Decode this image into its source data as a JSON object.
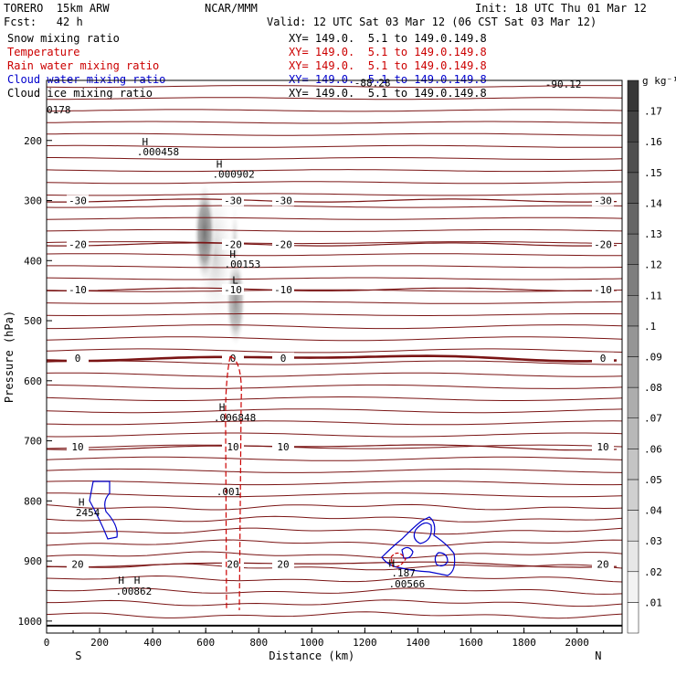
{
  "header": {
    "model": "TORERO  15km ARW",
    "org": "NCAR/MMM",
    "init": "Init: 18 UTC Thu 01 Mar 12",
    "fcst": "Fcst:   42 h",
    "valid": "Valid: 12 UTC Sat 03 Mar 12 (06 CST Sat 03 Mar 12)"
  },
  "legend": [
    {
      "label": "Snow mixing ratio",
      "xy": "XY= 149.0.  5.1 to 149.0.149.8",
      "color": "#000000"
    },
    {
      "label": "Temperature",
      "xy": "XY= 149.0.  5.1 to 149.0.149.8",
      "color": "#cc0000"
    },
    {
      "label": "Rain water mixing ratio",
      "xy": "XY= 149.0.  5.1 to 149.0.149.8",
      "color": "#cc0000"
    },
    {
      "label": "Cloud water mixing ratio",
      "xy": "XY= 149.0.  5.1 to 149.0.149.8",
      "color": "#0000cc"
    },
    {
      "label": "Cloud ice mixing ratio",
      "xy": "XY= 149.0.  5.1 to 149.0.149.8",
      "color": "#000000"
    }
  ],
  "chart_data": {
    "type": "cross-section contour",
    "xlabel": "Distance (km)",
    "ylabel": "Pressure (hPa)",
    "xlim": [
      0,
      2170
    ],
    "ylim": [
      1000,
      100
    ],
    "x_ticks": [
      "0",
      "200",
      "400",
      "600",
      "800",
      "1000",
      "1200",
      "1400",
      "1600",
      "1800",
      "2000"
    ],
    "x_tick_values": [
      0,
      200,
      400,
      600,
      800,
      1000,
      1200,
      1400,
      1600,
      1800,
      2000
    ],
    "y_ticks": [
      "200",
      "300",
      "400",
      "500",
      "600",
      "700",
      "800",
      "900",
      "1000"
    ],
    "y_tick_values": [
      200,
      300,
      400,
      500,
      600,
      700,
      800,
      900,
      1000
    ],
    "left_end_label": "S",
    "right_end_label": "N",
    "colorbar": {
      "unit": "g kg⁻¹",
      "levels": [
        ".01",
        ".02",
        ".03",
        ".04",
        ".05",
        ".06",
        ".07",
        ".08",
        ".09",
        ".1",
        ".11",
        ".12",
        ".13",
        ".14",
        ".15",
        ".16",
        ".17"
      ],
      "level_values": [
        0.01,
        0.02,
        0.03,
        0.04,
        0.05,
        0.06,
        0.07,
        0.08,
        0.09,
        0.1,
        0.11,
        0.12,
        0.13,
        0.14,
        0.15,
        0.16,
        0.17
      ]
    },
    "temperature_isotherms": [
      {
        "label": "-30",
        "pressure": 300
      },
      {
        "label": "-20",
        "pressure": 373
      },
      {
        "label": "-10",
        "pressure": 448
      },
      {
        "label": "0",
        "pressure": 562
      },
      {
        "label": "10",
        "pressure": 710
      },
      {
        "label": "20",
        "pressure": 905
      }
    ],
    "annotations": [
      {
        "text": "0178",
        "x": 0,
        "pressure": 155,
        "color": "#000000"
      },
      {
        "text": "H",
        "x": 360,
        "pressure": 208,
        "color": "#000000"
      },
      {
        "text": ".000458",
        "x": 340,
        "pressure": 225,
        "color": "#000000"
      },
      {
        "text": "H",
        "x": 640,
        "pressure": 245,
        "color": "#000000"
      },
      {
        "text": ".000902",
        "x": 625,
        "pressure": 262,
        "color": "#000000"
      },
      {
        "text": "H",
        "x": 690,
        "pressure": 395,
        "color": "#000000"
      },
      {
        "text": ".00153",
        "x": 670,
        "pressure": 412,
        "color": "#000000"
      },
      {
        "text": "L",
        "x": 700,
        "pressure": 438,
        "color": "#000000"
      },
      {
        "text": "H",
        "x": 650,
        "pressure": 650,
        "color": "#cc0000"
      },
      {
        "text": ".006848",
        "x": 630,
        "pressure": 667,
        "color": "#cc0000"
      },
      {
        "text": ".001",
        "x": 640,
        "pressure": 790,
        "color": "#cc0000"
      },
      {
        "text": "H",
        "x": 120,
        "pressure": 808,
        "color": "#0000cc"
      },
      {
        "text": "2454",
        "x": 110,
        "pressure": 825,
        "color": "#0000cc"
      },
      {
        "text": "H",
        "x": 270,
        "pressure": 938,
        "color": "#cc0000"
      },
      {
        "text": "H",
        "x": 330,
        "pressure": 938,
        "color": "#0000cc"
      },
      {
        "text": ".00862",
        "x": 260,
        "pressure": 956,
        "color": "#cc0000"
      },
      {
        "text": "H",
        "x": 1290,
        "pressure": 910,
        "color": "#0000cc"
      },
      {
        "text": ".187",
        "x": 1300,
        "pressure": 926,
        "color": "#0000cc"
      },
      {
        "text": ".00566",
        "x": 1290,
        "pressure": 944,
        "color": "#cc0000"
      },
      {
        "text": "-88.28",
        "x": 1160,
        "pressure": 110,
        "color": "#000000"
      },
      {
        "text": "-90.12",
        "x": 1880,
        "pressure": 112,
        "color": "#000000"
      }
    ]
  }
}
